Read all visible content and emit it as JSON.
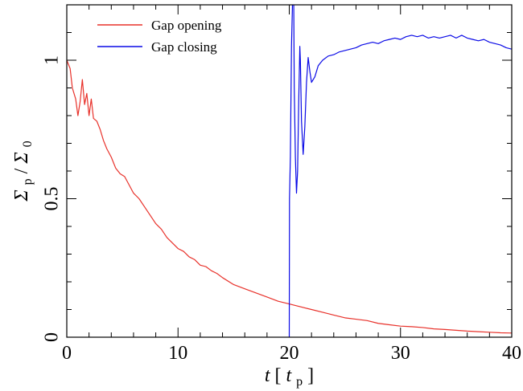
{
  "chart_data": {
    "type": "line",
    "xlabel": {
      "var": "t",
      "unit_var": "t",
      "unit_sub": "p"
    },
    "ylabel": {
      "num": "Σ",
      "num_sub": "p",
      "sep": " / ",
      "den": "Σ",
      "den_sub": "0"
    },
    "xlim": [
      0,
      40
    ],
    "ylim": [
      0,
      1.2
    ],
    "x_ticks": [
      "0",
      "10",
      "20",
      "30",
      "40"
    ],
    "y_ticks": [
      "0",
      "0.5",
      "1"
    ],
    "grid": false,
    "legend": "top-left",
    "series": [
      {
        "name": "Gap opening",
        "color": "#e8312a",
        "points": [
          [
            0,
            1.0
          ],
          [
            0.3,
            0.97
          ],
          [
            0.5,
            0.9
          ],
          [
            0.8,
            0.86
          ],
          [
            1.0,
            0.8
          ],
          [
            1.2,
            0.85
          ],
          [
            1.4,
            0.93
          ],
          [
            1.6,
            0.84
          ],
          [
            1.8,
            0.88
          ],
          [
            2.0,
            0.8
          ],
          [
            2.2,
            0.86
          ],
          [
            2.4,
            0.79
          ],
          [
            2.7,
            0.78
          ],
          [
            3.0,
            0.75
          ],
          [
            3.3,
            0.71
          ],
          [
            3.6,
            0.68
          ],
          [
            4.0,
            0.65
          ],
          [
            4.4,
            0.61
          ],
          [
            4.8,
            0.59
          ],
          [
            5.2,
            0.58
          ],
          [
            5.6,
            0.55
          ],
          [
            6.0,
            0.52
          ],
          [
            6.5,
            0.5
          ],
          [
            7.0,
            0.47
          ],
          [
            7.5,
            0.44
          ],
          [
            8.0,
            0.41
          ],
          [
            8.5,
            0.39
          ],
          [
            9.0,
            0.36
          ],
          [
            9.5,
            0.34
          ],
          [
            10.0,
            0.32
          ],
          [
            10.5,
            0.31
          ],
          [
            11.0,
            0.29
          ],
          [
            11.5,
            0.28
          ],
          [
            12.0,
            0.26
          ],
          [
            12.5,
            0.255
          ],
          [
            13.0,
            0.24
          ],
          [
            13.5,
            0.23
          ],
          [
            14.0,
            0.215
          ],
          [
            15.0,
            0.19
          ],
          [
            16.0,
            0.175
          ],
          [
            17.0,
            0.16
          ],
          [
            18.0,
            0.145
          ],
          [
            19.0,
            0.13
          ],
          [
            20.0,
            0.12
          ],
          [
            21.0,
            0.11
          ],
          [
            22.0,
            0.1
          ],
          [
            23.0,
            0.09
          ],
          [
            24.0,
            0.08
          ],
          [
            25.0,
            0.07
          ],
          [
            26.0,
            0.065
          ],
          [
            27.0,
            0.06
          ],
          [
            28.0,
            0.05
          ],
          [
            29.0,
            0.045
          ],
          [
            30.0,
            0.04
          ],
          [
            31.0,
            0.038
          ],
          [
            32.0,
            0.035
          ],
          [
            33.0,
            0.03
          ],
          [
            34.0,
            0.028
          ],
          [
            35.0,
            0.025
          ],
          [
            36.0,
            0.022
          ],
          [
            37.0,
            0.02
          ],
          [
            38.0,
            0.018
          ],
          [
            39.0,
            0.016
          ],
          [
            40.0,
            0.015
          ]
        ]
      },
      {
        "name": "Gap closing",
        "color": "#0a0ae6",
        "points": [
          [
            20.0,
            0.0
          ],
          [
            20.02,
            0.5
          ],
          [
            20.1,
            0.65
          ],
          [
            20.2,
            1.05
          ],
          [
            20.3,
            1.22
          ],
          [
            20.4,
            1.22
          ],
          [
            20.45,
            0.9
          ],
          [
            20.55,
            0.65
          ],
          [
            20.65,
            0.52
          ],
          [
            20.75,
            0.6
          ],
          [
            20.85,
            0.85
          ],
          [
            20.95,
            1.05
          ],
          [
            21.0,
            1.0
          ],
          [
            21.1,
            0.78
          ],
          [
            21.25,
            0.66
          ],
          [
            21.4,
            0.76
          ],
          [
            21.55,
            0.92
          ],
          [
            21.7,
            1.01
          ],
          [
            21.85,
            0.96
          ],
          [
            22.0,
            0.92
          ],
          [
            22.3,
            0.94
          ],
          [
            22.6,
            0.98
          ],
          [
            23.0,
            1.0
          ],
          [
            23.5,
            1.015
          ],
          [
            24.0,
            1.02
          ],
          [
            24.5,
            1.03
          ],
          [
            25.0,
            1.035
          ],
          [
            25.5,
            1.04
          ],
          [
            26.0,
            1.045
          ],
          [
            26.5,
            1.055
          ],
          [
            27.0,
            1.06
          ],
          [
            27.5,
            1.065
          ],
          [
            28.0,
            1.06
          ],
          [
            28.5,
            1.07
          ],
          [
            29.0,
            1.075
          ],
          [
            29.5,
            1.08
          ],
          [
            30.0,
            1.075
          ],
          [
            30.5,
            1.085
          ],
          [
            31.0,
            1.09
          ],
          [
            31.5,
            1.085
          ],
          [
            32.0,
            1.09
          ],
          [
            32.5,
            1.08
          ],
          [
            33.0,
            1.085
          ],
          [
            33.5,
            1.08
          ],
          [
            34.0,
            1.085
          ],
          [
            34.5,
            1.09
          ],
          [
            35.0,
            1.08
          ],
          [
            35.5,
            1.09
          ],
          [
            36.0,
            1.08
          ],
          [
            36.5,
            1.075
          ],
          [
            37.0,
            1.07
          ],
          [
            37.5,
            1.075
          ],
          [
            38.0,
            1.065
          ],
          [
            38.5,
            1.06
          ],
          [
            39.0,
            1.055
          ],
          [
            39.5,
            1.045
          ],
          [
            40.0,
            1.04
          ]
        ]
      }
    ]
  }
}
